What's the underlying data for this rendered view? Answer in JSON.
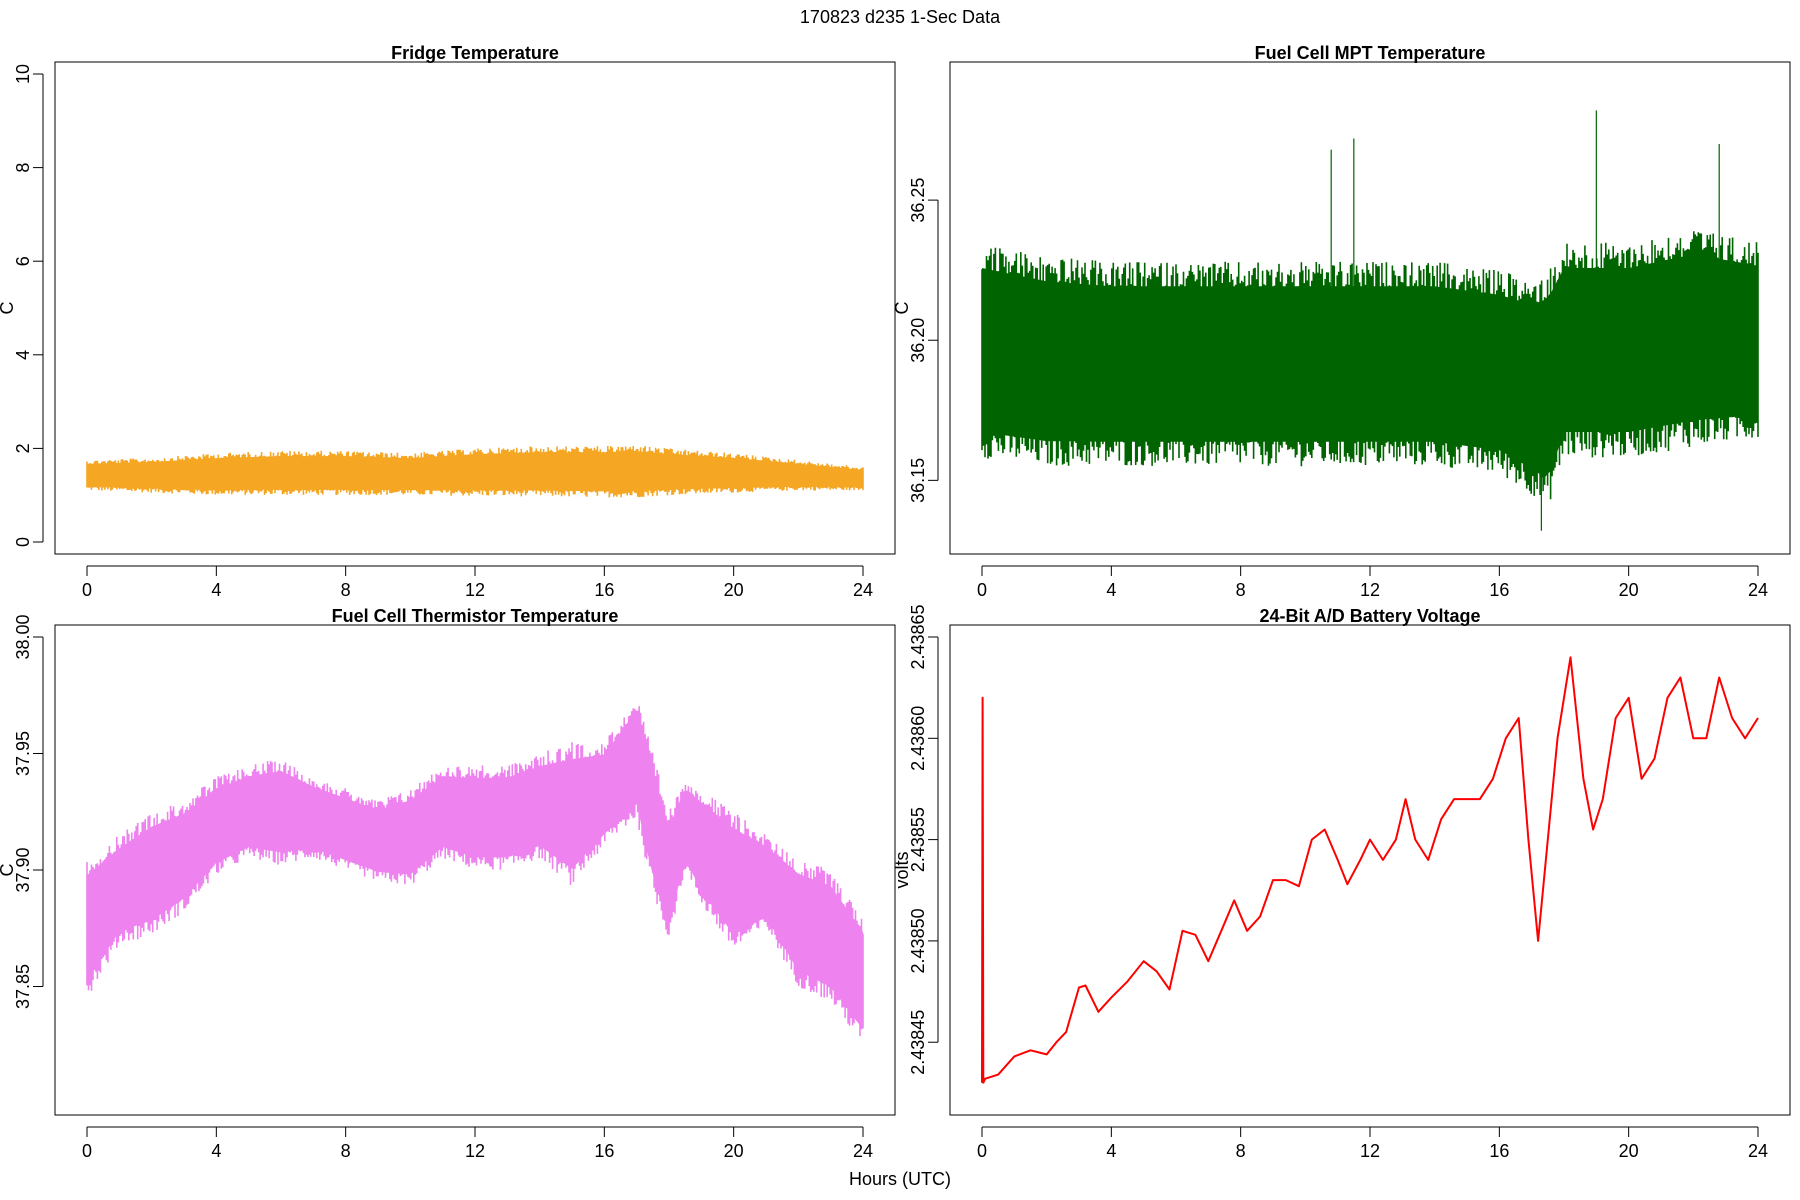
{
  "figure": {
    "title": "170823   d235   1-Sec Data",
    "xlabel": "Hours (UTC)"
  },
  "chart_data": [
    {
      "type": "line",
      "title": "Fridge Temperature",
      "xlabel": "",
      "ylabel": "C",
      "color": "#f5a623",
      "xlim": [
        0,
        24
      ],
      "ylim": [
        0,
        10
      ],
      "xticks": [
        0,
        4,
        8,
        12,
        16,
        20,
        24
      ],
      "yticks": [
        0,
        2,
        4,
        6,
        8,
        10
      ],
      "ytick_labels": [
        "0",
        "2",
        "4",
        "6",
        "8",
        "10"
      ],
      "envelope": {
        "x": [
          0,
          2,
          4,
          6,
          8,
          10,
          12,
          14,
          16,
          17,
          18,
          20,
          22,
          24
        ],
        "low": [
          1.1,
          1.05,
          1.0,
          1.0,
          1.0,
          1.0,
          0.98,
          0.97,
          0.95,
          0.95,
          1.0,
          1.05,
          1.1,
          1.1
        ],
        "high": [
          1.75,
          1.8,
          1.9,
          1.95,
          1.95,
          1.9,
          2.0,
          2.05,
          2.05,
          2.08,
          2.0,
          1.9,
          1.75,
          1.6
        ]
      }
    },
    {
      "type": "line",
      "title": "Fuel Cell MPT Temperature",
      "xlabel": "",
      "ylabel": "C",
      "color": "#006400",
      "xlim": [
        0,
        24
      ],
      "ylim": [
        36.128,
        36.295
      ],
      "xticks": [
        0,
        4,
        8,
        12,
        16,
        20,
        24
      ],
      "yticks": [
        36.15,
        36.2,
        36.25
      ],
      "ytick_labels": [
        "36.15",
        "36.20",
        "36.25"
      ],
      "envelope": {
        "x": [
          0,
          2,
          4,
          6,
          8,
          10,
          12,
          14,
          16,
          17,
          17.5,
          18,
          20,
          22,
          24
        ],
        "low": [
          36.158,
          36.155,
          36.155,
          36.155,
          36.155,
          36.155,
          36.155,
          36.155,
          36.152,
          36.145,
          36.14,
          36.158,
          36.158,
          36.162,
          36.165
        ],
        "high": [
          36.235,
          36.23,
          36.228,
          36.228,
          36.228,
          36.228,
          36.228,
          36.228,
          36.225,
          36.222,
          36.225,
          36.235,
          36.235,
          36.24,
          36.235
        ]
      },
      "spikes": [
        {
          "x": 11.5,
          "y": 36.272
        },
        {
          "x": 19.0,
          "y": 36.282
        },
        {
          "x": 22.8,
          "y": 36.27
        },
        {
          "x": 10.8,
          "y": 36.268
        },
        {
          "x": 17.3,
          "y": 36.132
        }
      ]
    },
    {
      "type": "line",
      "title": "Fuel Cell Thermistor Temperature",
      "xlabel": "",
      "ylabel": "C",
      "color": "#ee82ee",
      "xlim": [
        0,
        24
      ],
      "ylim": [
        37.8,
        38.0
      ],
      "xticks": [
        0,
        4,
        8,
        12,
        16,
        20,
        24
      ],
      "yticks": [
        37.85,
        37.9,
        37.95,
        38.0
      ],
      "ytick_labels": [
        "37.85",
        "37.90",
        "37.95",
        "38.00"
      ],
      "envelope": {
        "x": [
          0,
          1,
          2,
          3,
          4,
          5,
          6,
          7,
          8,
          9,
          10,
          11,
          12,
          13,
          14,
          15,
          16,
          17,
          17.5,
          18,
          18.5,
          19,
          20,
          21,
          22,
          23,
          24
        ],
        "low": [
          37.845,
          37.868,
          37.872,
          37.882,
          37.898,
          37.905,
          37.902,
          37.905,
          37.9,
          37.895,
          37.893,
          37.905,
          37.9,
          37.9,
          37.905,
          37.893,
          37.91,
          37.922,
          37.89,
          37.87,
          37.9,
          37.885,
          37.865,
          37.875,
          37.85,
          37.843,
          37.825
        ],
        "high": [
          37.905,
          37.915,
          37.925,
          37.93,
          37.94,
          37.945,
          37.948,
          37.94,
          37.935,
          37.93,
          37.935,
          37.945,
          37.945,
          37.945,
          37.95,
          37.955,
          37.955,
          37.975,
          37.95,
          37.925,
          37.94,
          37.935,
          37.925,
          37.915,
          37.905,
          37.9,
          37.88
        ]
      }
    },
    {
      "type": "line",
      "title": "24-Bit A/D Battery Voltage",
      "xlabel": "",
      "ylabel": "volts",
      "color": "#ff0000",
      "xlim": [
        0,
        24
      ],
      "ylim": [
        2.43842,
        2.43865
      ],
      "xticks": [
        0,
        4,
        8,
        12,
        16,
        20,
        24
      ],
      "yticks": [
        2.43845,
        2.4385,
        2.43855,
        2.4386,
        2.43865
      ],
      "ytick_labels": [
        "2.43845",
        "2.43850",
        "2.43855",
        "2.43860",
        "2.43865"
      ],
      "x": [
        0,
        0.02,
        0.04,
        0.1,
        0.5,
        1,
        1.5,
        2,
        2.3,
        2.6,
        3.0,
        3.2,
        3.6,
        4.0,
        4.5,
        5.0,
        5.4,
        5.8,
        6.2,
        6.6,
        7.0,
        7.4,
        7.8,
        8.2,
        8.6,
        9.0,
        9.4,
        9.8,
        10.2,
        10.6,
        11.0,
        11.3,
        11.7,
        12.0,
        12.4,
        12.8,
        13.1,
        13.4,
        13.8,
        14.2,
        14.6,
        15.0,
        15.4,
        15.8,
        16.2,
        16.6,
        16.9,
        17.2,
        17.5,
        17.8,
        18.2,
        18.6,
        18.9,
        19.2,
        19.6,
        20.0,
        20.4,
        20.8,
        21.2,
        21.6,
        22.0,
        22.4,
        22.8,
        23.2,
        23.6,
        24.0
      ],
      "y": [
        2.43843,
        2.43862,
        2.43843,
        2.438432,
        2.438434,
        2.438443,
        2.438446,
        2.438444,
        2.43845,
        2.438455,
        2.438477,
        2.438478,
        2.438465,
        2.438472,
        2.43848,
        2.43849,
        2.438485,
        2.438476,
        2.438505,
        2.438503,
        2.43849,
        2.438505,
        2.43852,
        2.438505,
        2.438512,
        2.43853,
        2.43853,
        2.438527,
        2.43855,
        2.438555,
        2.43854,
        2.438528,
        2.43854,
        2.43855,
        2.43854,
        2.43855,
        2.43857,
        2.43855,
        2.43854,
        2.43856,
        2.43857,
        2.43857,
        2.43857,
        2.43858,
        2.4386,
        2.43861,
        2.43855,
        2.4385,
        2.43855,
        2.4386,
        2.43864,
        2.43858,
        2.438555,
        2.43857,
        2.43861,
        2.43862,
        2.43858,
        2.43859,
        2.43862,
        2.43863,
        2.4386,
        2.4386,
        2.43863,
        2.43861,
        2.4386,
        2.43861
      ]
    }
  ]
}
